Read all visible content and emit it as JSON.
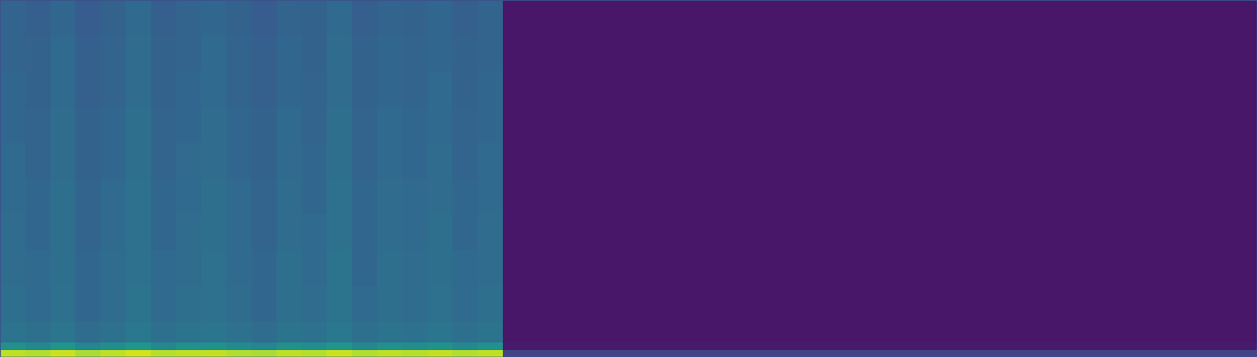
{
  "chart_data": {
    "type": "heatmap",
    "color": "viridis",
    "tick_labels": false,
    "xlim": [
      0,
      1
    ],
    "ylim": [
      0,
      1
    ],
    "zlim": [
      0,
      1
    ],
    "x_edges": [
      0,
      0.02,
      0.04,
      0.06,
      0.08,
      0.1,
      0.12,
      0.14,
      0.16,
      0.18,
      0.2,
      0.22,
      0.24,
      0.26,
      0.28,
      0.3,
      0.32,
      0.34,
      0.36,
      0.38,
      0.4,
      0.5,
      0.6,
      0.7,
      0.8,
      0.9,
      1
    ],
    "y_edges": [
      0,
      0.02,
      0.04,
      0.1,
      0.2,
      0.3,
      0.4,
      0.5,
      0.6,
      0.7,
      0.8,
      0.9,
      1
    ],
    "values": [
      [
        0.9,
        0.88,
        0.92,
        0.87,
        0.9,
        0.93,
        0.89,
        0.9,
        0.91,
        0.88,
        0.87,
        0.9,
        0.89,
        0.92,
        0.88,
        0.9,
        0.89,
        0.91,
        0.88,
        0.9,
        0.2,
        0.2,
        0.2,
        0.2,
        0.2,
        0.2
      ],
      [
        0.5,
        0.47,
        0.52,
        0.46,
        0.49,
        0.53,
        0.47,
        0.5,
        0.51,
        0.48,
        0.46,
        0.5,
        0.49,
        0.52,
        0.47,
        0.5,
        0.49,
        0.51,
        0.47,
        0.5,
        0.07,
        0.07,
        0.07,
        0.07,
        0.07,
        0.07
      ],
      [
        0.38,
        0.36,
        0.39,
        0.35,
        0.37,
        0.4,
        0.36,
        0.38,
        0.39,
        0.37,
        0.35,
        0.38,
        0.37,
        0.4,
        0.36,
        0.38,
        0.37,
        0.39,
        0.36,
        0.38,
        0.06,
        0.06,
        0.06,
        0.06,
        0.06,
        0.06
      ],
      [
        0.36,
        0.34,
        0.37,
        0.33,
        0.35,
        0.38,
        0.34,
        0.36,
        0.37,
        0.35,
        0.33,
        0.36,
        0.35,
        0.38,
        0.34,
        0.36,
        0.35,
        0.37,
        0.34,
        0.36,
        0.06,
        0.06,
        0.06,
        0.06,
        0.06,
        0.06
      ],
      [
        0.35,
        0.34,
        0.36,
        0.33,
        0.35,
        0.37,
        0.34,
        0.35,
        0.37,
        0.34,
        0.33,
        0.36,
        0.34,
        0.38,
        0.33,
        0.36,
        0.35,
        0.36,
        0.34,
        0.35,
        0.06,
        0.06,
        0.06,
        0.06,
        0.06,
        0.06
      ],
      [
        0.35,
        0.33,
        0.36,
        0.32,
        0.34,
        0.37,
        0.33,
        0.35,
        0.36,
        0.34,
        0.32,
        0.35,
        0.34,
        0.37,
        0.33,
        0.35,
        0.34,
        0.36,
        0.33,
        0.35,
        0.06,
        0.06,
        0.06,
        0.06,
        0.06,
        0.06
      ],
      [
        0.34,
        0.33,
        0.36,
        0.32,
        0.34,
        0.37,
        0.33,
        0.34,
        0.36,
        0.34,
        0.32,
        0.35,
        0.33,
        0.37,
        0.33,
        0.35,
        0.34,
        0.35,
        0.33,
        0.34,
        0.06,
        0.06,
        0.06,
        0.06,
        0.06,
        0.06
      ],
      [
        0.34,
        0.32,
        0.35,
        0.31,
        0.33,
        0.36,
        0.32,
        0.34,
        0.35,
        0.33,
        0.31,
        0.34,
        0.33,
        0.36,
        0.32,
        0.34,
        0.33,
        0.35,
        0.32,
        0.34,
        0.06,
        0.06,
        0.06,
        0.06,
        0.06,
        0.06
      ],
      [
        0.33,
        0.32,
        0.35,
        0.31,
        0.33,
        0.36,
        0.32,
        0.33,
        0.35,
        0.33,
        0.31,
        0.34,
        0.32,
        0.36,
        0.32,
        0.34,
        0.33,
        0.34,
        0.32,
        0.33,
        0.06,
        0.06,
        0.06,
        0.06,
        0.06,
        0.06
      ],
      [
        0.33,
        0.31,
        0.34,
        0.3,
        0.32,
        0.35,
        0.31,
        0.33,
        0.34,
        0.32,
        0.3,
        0.33,
        0.32,
        0.35,
        0.31,
        0.33,
        0.32,
        0.34,
        0.31,
        0.33,
        0.06,
        0.06,
        0.06,
        0.06,
        0.06,
        0.06
      ],
      [
        0.32,
        0.31,
        0.34,
        0.3,
        0.32,
        0.35,
        0.31,
        0.32,
        0.34,
        0.32,
        0.3,
        0.33,
        0.31,
        0.35,
        0.31,
        0.33,
        0.32,
        0.33,
        0.31,
        0.32,
        0.06,
        0.06,
        0.06,
        0.06,
        0.06,
        0.06
      ],
      [
        0.32,
        0.3,
        0.33,
        0.29,
        0.31,
        0.34,
        0.3,
        0.32,
        0.33,
        0.31,
        0.29,
        0.32,
        0.31,
        0.34,
        0.3,
        0.32,
        0.31,
        0.33,
        0.3,
        0.32,
        0.06,
        0.06,
        0.06,
        0.06,
        0.06,
        0.06
      ]
    ]
  }
}
